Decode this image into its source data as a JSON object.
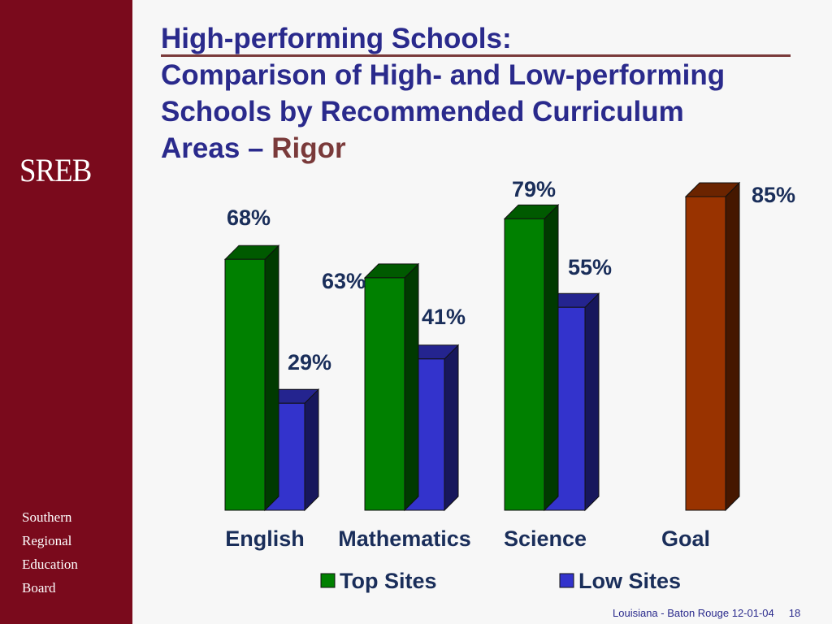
{
  "sidebar": {
    "logo": "SREB",
    "org_lines": [
      "Southern",
      "Regional",
      "Education",
      "Board"
    ]
  },
  "title": {
    "line1": "High-performing Schools:",
    "line2": "Comparison of High- and Low-performing",
    "line3": "Schools by Recommended Curriculum",
    "line4_prefix": "Areas – ",
    "line4_accent": "Rigor"
  },
  "footer": {
    "text": "Louisiana - Baton Rouge 12-01-04",
    "page": "18"
  },
  "colors": {
    "sidebar": "#7a0a1c",
    "title": "#2a2a8c",
    "top_sites": "#008000",
    "low_sites": "#3333cc",
    "goal": "#993300"
  },
  "chart_data": {
    "type": "bar",
    "categories": [
      "English",
      "Mathematics",
      "Science",
      "Goal"
    ],
    "series": [
      {
        "name": "Top Sites",
        "values": [
          68,
          63,
          79,
          null
        ],
        "labels": [
          "68%",
          "63%",
          "79%",
          ""
        ]
      },
      {
        "name": "Low Sites",
        "values": [
          29,
          41,
          55,
          null
        ],
        "labels": [
          "29%",
          "41%",
          "55%",
          ""
        ]
      }
    ],
    "goal": {
      "value": 85,
      "label": "85%"
    },
    "ylim": [
      0,
      85
    ],
    "legend": [
      "Top Sites",
      "Low Sites"
    ],
    "legend_position": "bottom",
    "style": "3d"
  }
}
